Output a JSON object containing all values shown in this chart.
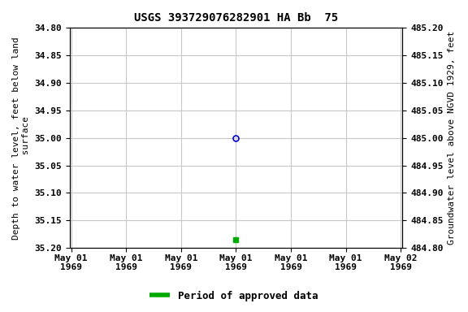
{
  "title": "USGS 393729076282901 HA Bb  75",
  "ylabel_left": "Depth to water level, feet below land\n surface",
  "ylabel_right": "Groundwater level above NGVD 1929, feet",
  "ylim_left": [
    35.2,
    34.8
  ],
  "ylim_right": [
    484.8,
    485.2
  ],
  "yticks_left": [
    34.8,
    34.85,
    34.9,
    34.95,
    35.0,
    35.05,
    35.1,
    35.15,
    35.2
  ],
  "yticks_right": [
    484.8,
    484.85,
    484.9,
    484.95,
    485.0,
    485.05,
    485.1,
    485.15,
    485.2
  ],
  "open_circle_depth": 35.0,
  "filled_square_depth": 35.185,
  "xtick_labels": [
    "May 01\n1969",
    "May 01\n1969",
    "May 01\n1969",
    "May 01\n1969",
    "May 01\n1969",
    "May 01\n1969",
    "May 02\n1969"
  ],
  "num_xticks": 7,
  "grid_color": "#c8c8c8",
  "plot_bg_color": "#ffffff",
  "fig_bg_color": "#ffffff",
  "open_circle_color": "#0000cc",
  "filled_square_color": "#00aa00",
  "legend_label": "Period of approved data",
  "legend_color": "#00aa00",
  "title_fontsize": 10,
  "axis_label_fontsize": 8,
  "tick_fontsize": 8,
  "legend_fontsize": 9
}
